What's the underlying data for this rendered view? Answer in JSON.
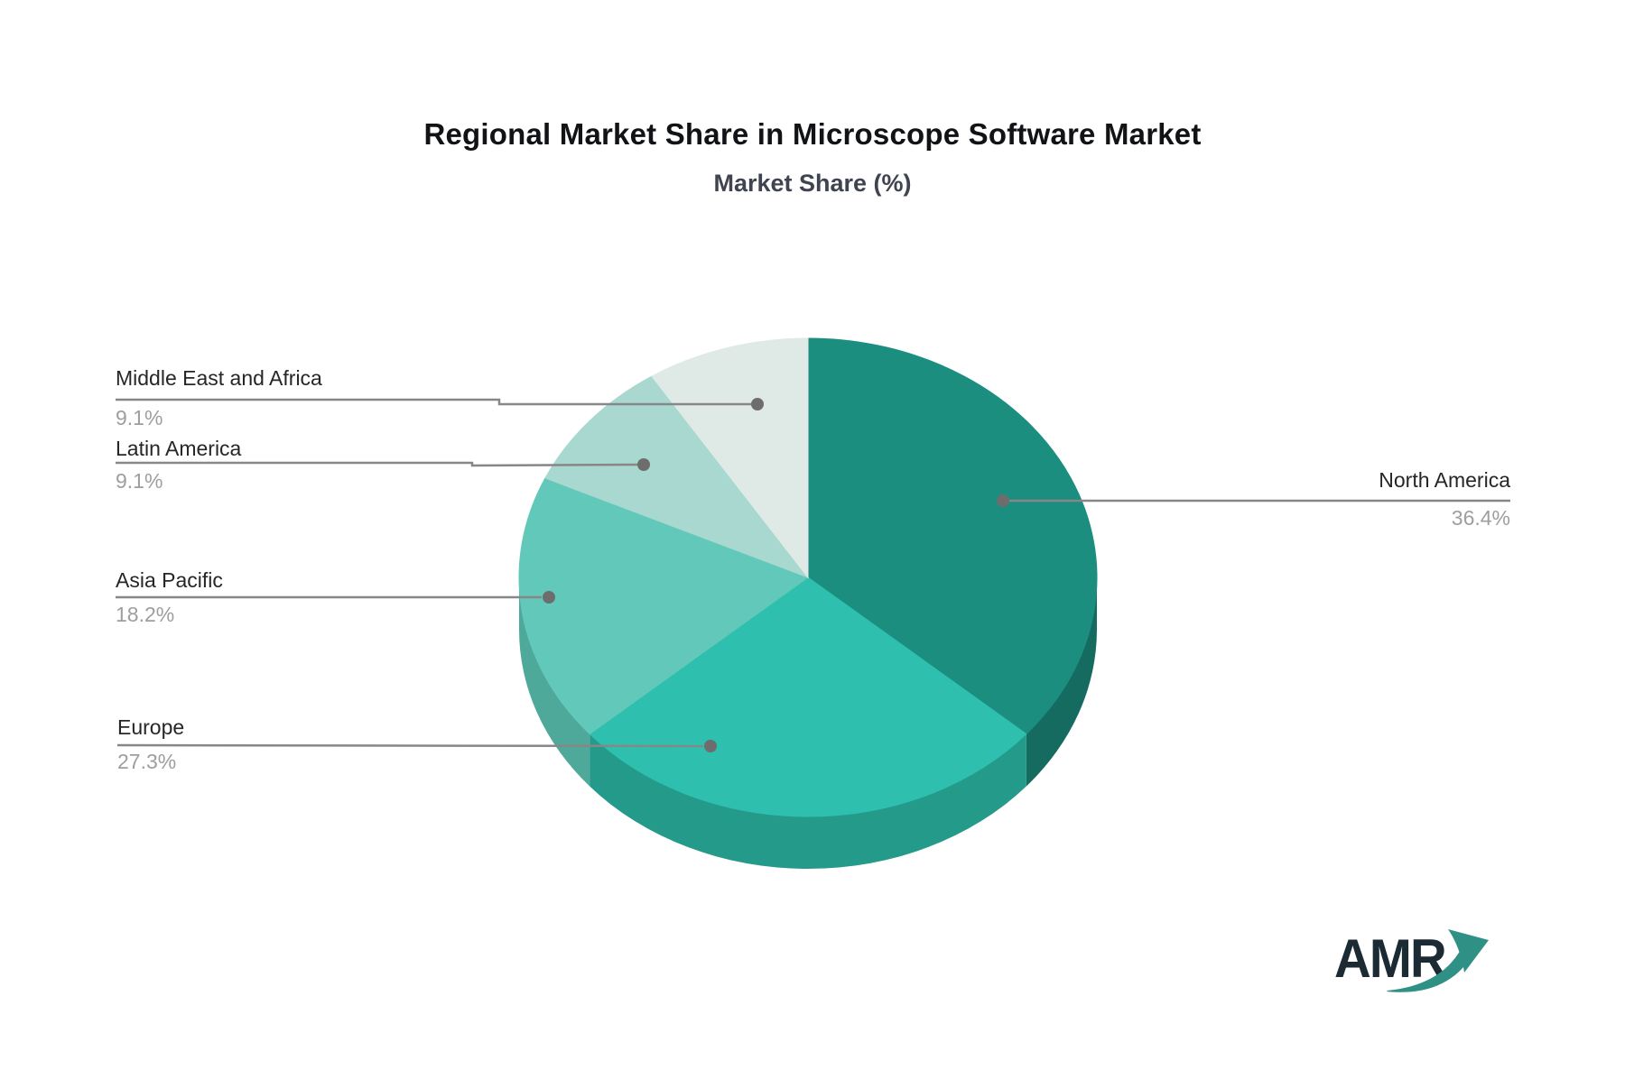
{
  "title": "Regional Market Share in Microscope Software Market",
  "subtitle": "Market Share (%)",
  "logo_text": "AMR",
  "colors": {
    "background": "#ffffff",
    "title_text": "#111316",
    "subtitle_text": "#3f4450",
    "label_text": "#262626",
    "percent_text": "#9e9e9e",
    "leader_line": "#878787",
    "leader_dot": "#6d6d6d",
    "logo_text": "#1c2b33",
    "logo_swoosh": "#2f9186"
  },
  "chart_data": {
    "type": "pie",
    "style": "3d",
    "title": "Regional Market Share in Microscope Software Market",
    "subtitle": "Market Share (%)",
    "unit": "%",
    "start_angle_deg": 0,
    "direction": "clockwise",
    "legend_position": "callout-labels",
    "slices": [
      {
        "label": "North America",
        "value": 36.4,
        "display": "36.4%",
        "color": "#1b8e80",
        "side_color": "#156b60"
      },
      {
        "label": "Europe",
        "value": 27.3,
        "display": "27.3%",
        "color": "#2ebfae",
        "side_color": "#249a8b"
      },
      {
        "label": "Asia Pacific",
        "value": 18.2,
        "display": "18.2%",
        "color": "#62c9ba",
        "side_color": "#4ea99b"
      },
      {
        "label": "Latin America",
        "value": 9.1,
        "display": "9.1%",
        "color": "#a8d8d0",
        "side_color": "#8fbcb4"
      },
      {
        "label": "Middle East and Africa",
        "value": 9.1,
        "display": "9.1%",
        "color": "#dfeae7",
        "side_color": "#bdd0cb"
      }
    ]
  }
}
